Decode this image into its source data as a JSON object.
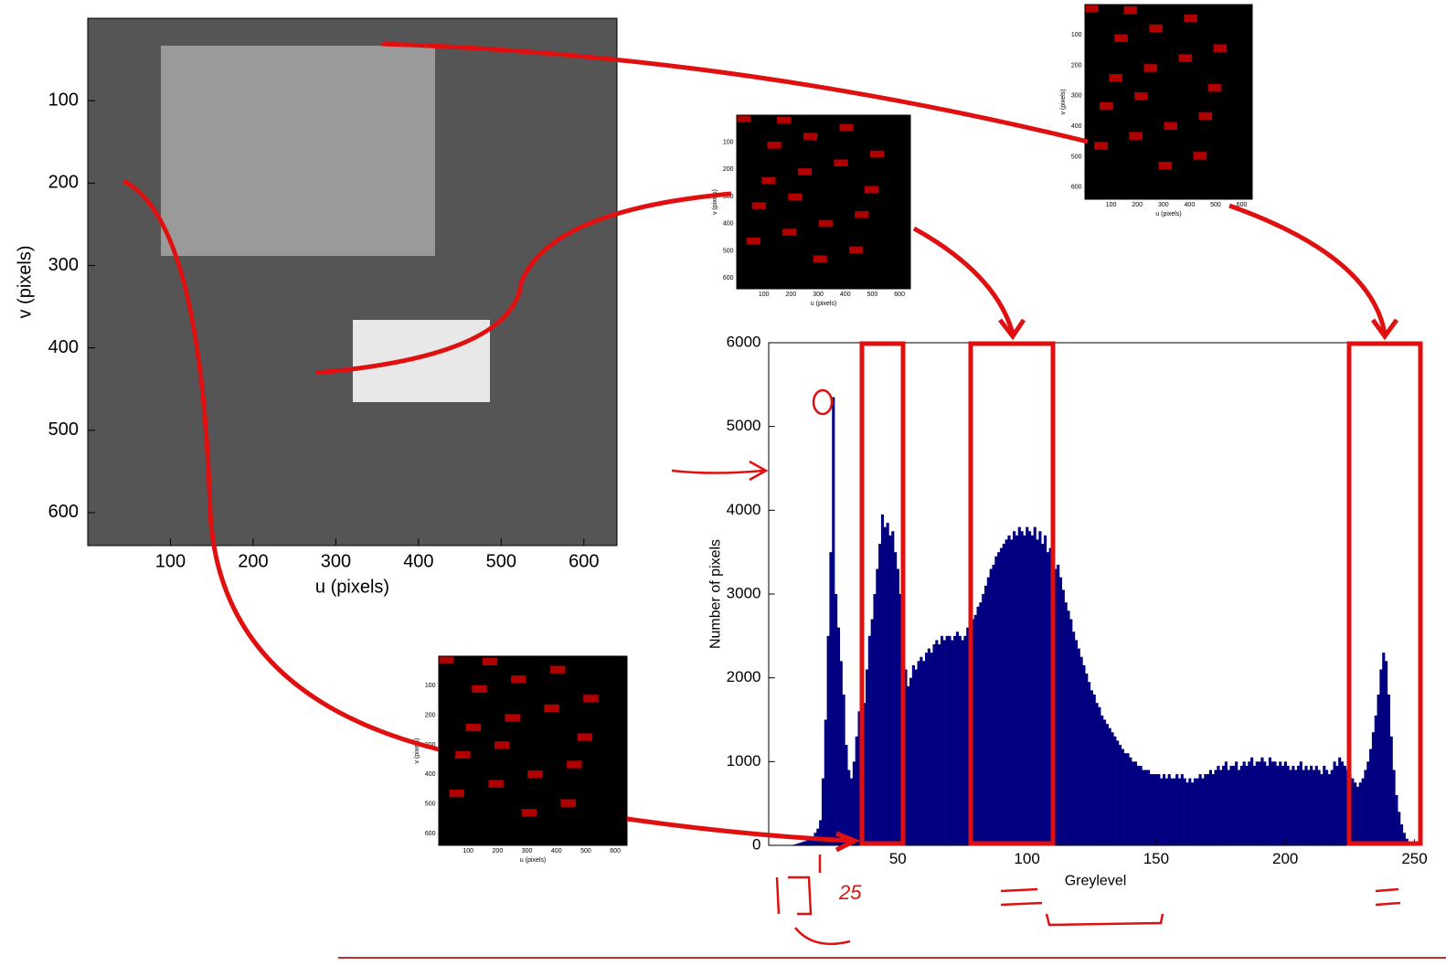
{
  "chart_data": [
    {
      "type": "image",
      "xlabel": "u (pixels)",
      "ylabel": "v (pixels)",
      "xlim": [
        0,
        640
      ],
      "ylim": [
        0,
        640
      ],
      "xticks": [
        100,
        200,
        300,
        400,
        500,
        600
      ],
      "yticks": [
        100,
        200,
        300,
        400,
        500,
        600
      ],
      "color": "#555555"
    },
    {
      "type": "bar",
      "xlabel": "Greylevel",
      "ylabel": "Number of pixels",
      "xlim": [
        0,
        253
      ],
      "ylim": [
        0,
        6000
      ],
      "xticks": [
        50,
        100,
        150,
        200,
        250
      ],
      "yticks": [
        0,
        1000,
        2000,
        3000,
        4000,
        5000,
        6000
      ],
      "color": "#000080",
      "annotations": [
        "25"
      ],
      "x": [
        0,
        1,
        2,
        3,
        4,
        5,
        6,
        7,
        8,
        9,
        10,
        11,
        12,
        13,
        14,
        15,
        16,
        17,
        18,
        19,
        20,
        21,
        22,
        23,
        24,
        25,
        26,
        27,
        28,
        29,
        30,
        31,
        32,
        33,
        34,
        35,
        36,
        37,
        38,
        39,
        40,
        41,
        42,
        43,
        44,
        45,
        46,
        47,
        48,
        49,
        50,
        51,
        52,
        53,
        54,
        55,
        56,
        57,
        58,
        59,
        60,
        61,
        62,
        63,
        64,
        65,
        66,
        67,
        68,
        69,
        70,
        71,
        72,
        73,
        74,
        75,
        76,
        77,
        78,
        79,
        80,
        81,
        82,
        83,
        84,
        85,
        86,
        87,
        88,
        89,
        90,
        91,
        92,
        93,
        94,
        95,
        96,
        97,
        98,
        99,
        100,
        101,
        102,
        103,
        104,
        105,
        106,
        107,
        108,
        109,
        110,
        111,
        112,
        113,
        114,
        115,
        116,
        117,
        118,
        119,
        120,
        121,
        122,
        123,
        124,
        125,
        126,
        127,
        128,
        129,
        130,
        131,
        132,
        133,
        134,
        135,
        136,
        137,
        138,
        139,
        140,
        141,
        142,
        143,
        144,
        145,
        146,
        147,
        148,
        149,
        150,
        151,
        152,
        153,
        154,
        155,
        156,
        157,
        158,
        159,
        160,
        161,
        162,
        163,
        164,
        165,
        166,
        167,
        168,
        169,
        170,
        171,
        172,
        173,
        174,
        175,
        176,
        177,
        178,
        179,
        180,
        181,
        182,
        183,
        184,
        185,
        186,
        187,
        188,
        189,
        190,
        191,
        192,
        193,
        194,
        195,
        196,
        197,
        198,
        199,
        200,
        201,
        202,
        203,
        204,
        205,
        206,
        207,
        208,
        209,
        210,
        211,
        212,
        213,
        214,
        215,
        216,
        217,
        218,
        219,
        220,
        221,
        222,
        223,
        224,
        225,
        226,
        227,
        228,
        229,
        230,
        231,
        232,
        233,
        234,
        235,
        236,
        237,
        238,
        239,
        240,
        241,
        242,
        243,
        244,
        245,
        246,
        247,
        248,
        249,
        250,
        251,
        252,
        253,
        254,
        255
      ],
      "values": [
        0,
        0,
        0,
        0,
        0,
        0,
        0,
        0,
        0,
        0,
        10,
        20,
        30,
        40,
        50,
        60,
        80,
        100,
        150,
        200,
        300,
        800,
        1500,
        2500,
        3500,
        5350,
        3000,
        2600,
        2200,
        1800,
        1200,
        900,
        800,
        1000,
        1300,
        1600,
        1600,
        1700,
        2100,
        2500,
        2700,
        3000,
        3300,
        3600,
        3950,
        3800,
        3850,
        3700,
        3750,
        3500,
        3300,
        3000,
        2500,
        2100,
        1900,
        2000,
        2150,
        2100,
        2200,
        2250,
        2200,
        2300,
        2350,
        2300,
        2400,
        2450,
        2400,
        2500,
        2450,
        2500,
        2500,
        2450,
        2500,
        2550,
        2500,
        2450,
        2500,
        2600,
        2650,
        2700,
        2750,
        2850,
        2900,
        3000,
        3100,
        3200,
        3300,
        3350,
        3450,
        3500,
        3550,
        3600,
        3650,
        3700,
        3650,
        3750,
        3700,
        3800,
        3750,
        3700,
        3800,
        3750,
        3700,
        3800,
        3650,
        3750,
        3600,
        3700,
        3500,
        3550,
        3400,
        3300,
        3350,
        3200,
        3050,
        2900,
        2800,
        2700,
        2550,
        2450,
        2350,
        2250,
        2150,
        2050,
        1950,
        1850,
        1800,
        1700,
        1650,
        1550,
        1500,
        1450,
        1400,
        1350,
        1300,
        1250,
        1200,
        1150,
        1100,
        1100,
        1050,
        1000,
        1000,
        950,
        950,
        900,
        900,
        900,
        850,
        850,
        850,
        850,
        800,
        850,
        800,
        850,
        800,
        800,
        850,
        800,
        850,
        800,
        750,
        800,
        750,
        800,
        800,
        850,
        800,
        850,
        850,
        900,
        850,
        900,
        950,
        900,
        950,
        1000,
        900,
        950,
        950,
        1000,
        900,
        950,
        1000,
        950,
        1000,
        1050,
        950,
        1000,
        1000,
        1050,
        1000,
        950,
        1050,
        1000,
        1000,
        950,
        1000,
        950,
        1000,
        950,
        900,
        950,
        900,
        950,
        1000,
        900,
        950,
        900,
        950,
        900,
        950,
        900,
        850,
        950,
        900,
        850,
        900,
        1000,
        950,
        1050,
        1000,
        950,
        900,
        850,
        800,
        750,
        700,
        750,
        800,
        900,
        1000,
        1150,
        1350,
        1550,
        1800,
        2100,
        2300,
        2200,
        1800,
        1300,
        900,
        600,
        400,
        250,
        150,
        80,
        40,
        20,
        10,
        5,
        0,
        0,
        0,
        0
      ]
    },
    {
      "type": "image",
      "xlabel": "u (pixels)",
      "ylabel": "v (pixels)",
      "xlim": [
        0,
        640
      ],
      "ylim": [
        0,
        640
      ],
      "xticks": [
        100,
        200,
        300,
        400,
        500,
        600
      ],
      "yticks": [
        100,
        200,
        300,
        400,
        500,
        600
      ],
      "color": "#000000"
    },
    {
      "type": "image",
      "xlabel": "u (pixels)",
      "ylabel": "v (pixels)",
      "xlim": [
        0,
        640
      ],
      "ylim": [
        0,
        640
      ],
      "xticks": [
        100,
        200,
        300,
        400,
        500,
        600
      ],
      "yticks": [
        100,
        200,
        300,
        400,
        500,
        600
      ],
      "color": "#000000"
    },
    {
      "type": "image",
      "xlabel": "u (pixels)",
      "ylabel": "v (pixels)",
      "xlim": [
        0,
        640
      ],
      "ylim": [
        0,
        640
      ],
      "xticks": [
        100,
        200,
        300,
        400,
        500,
        600
      ],
      "yticks": [
        100,
        200,
        300,
        400,
        500,
        600
      ],
      "color": "#000000"
    }
  ]
}
